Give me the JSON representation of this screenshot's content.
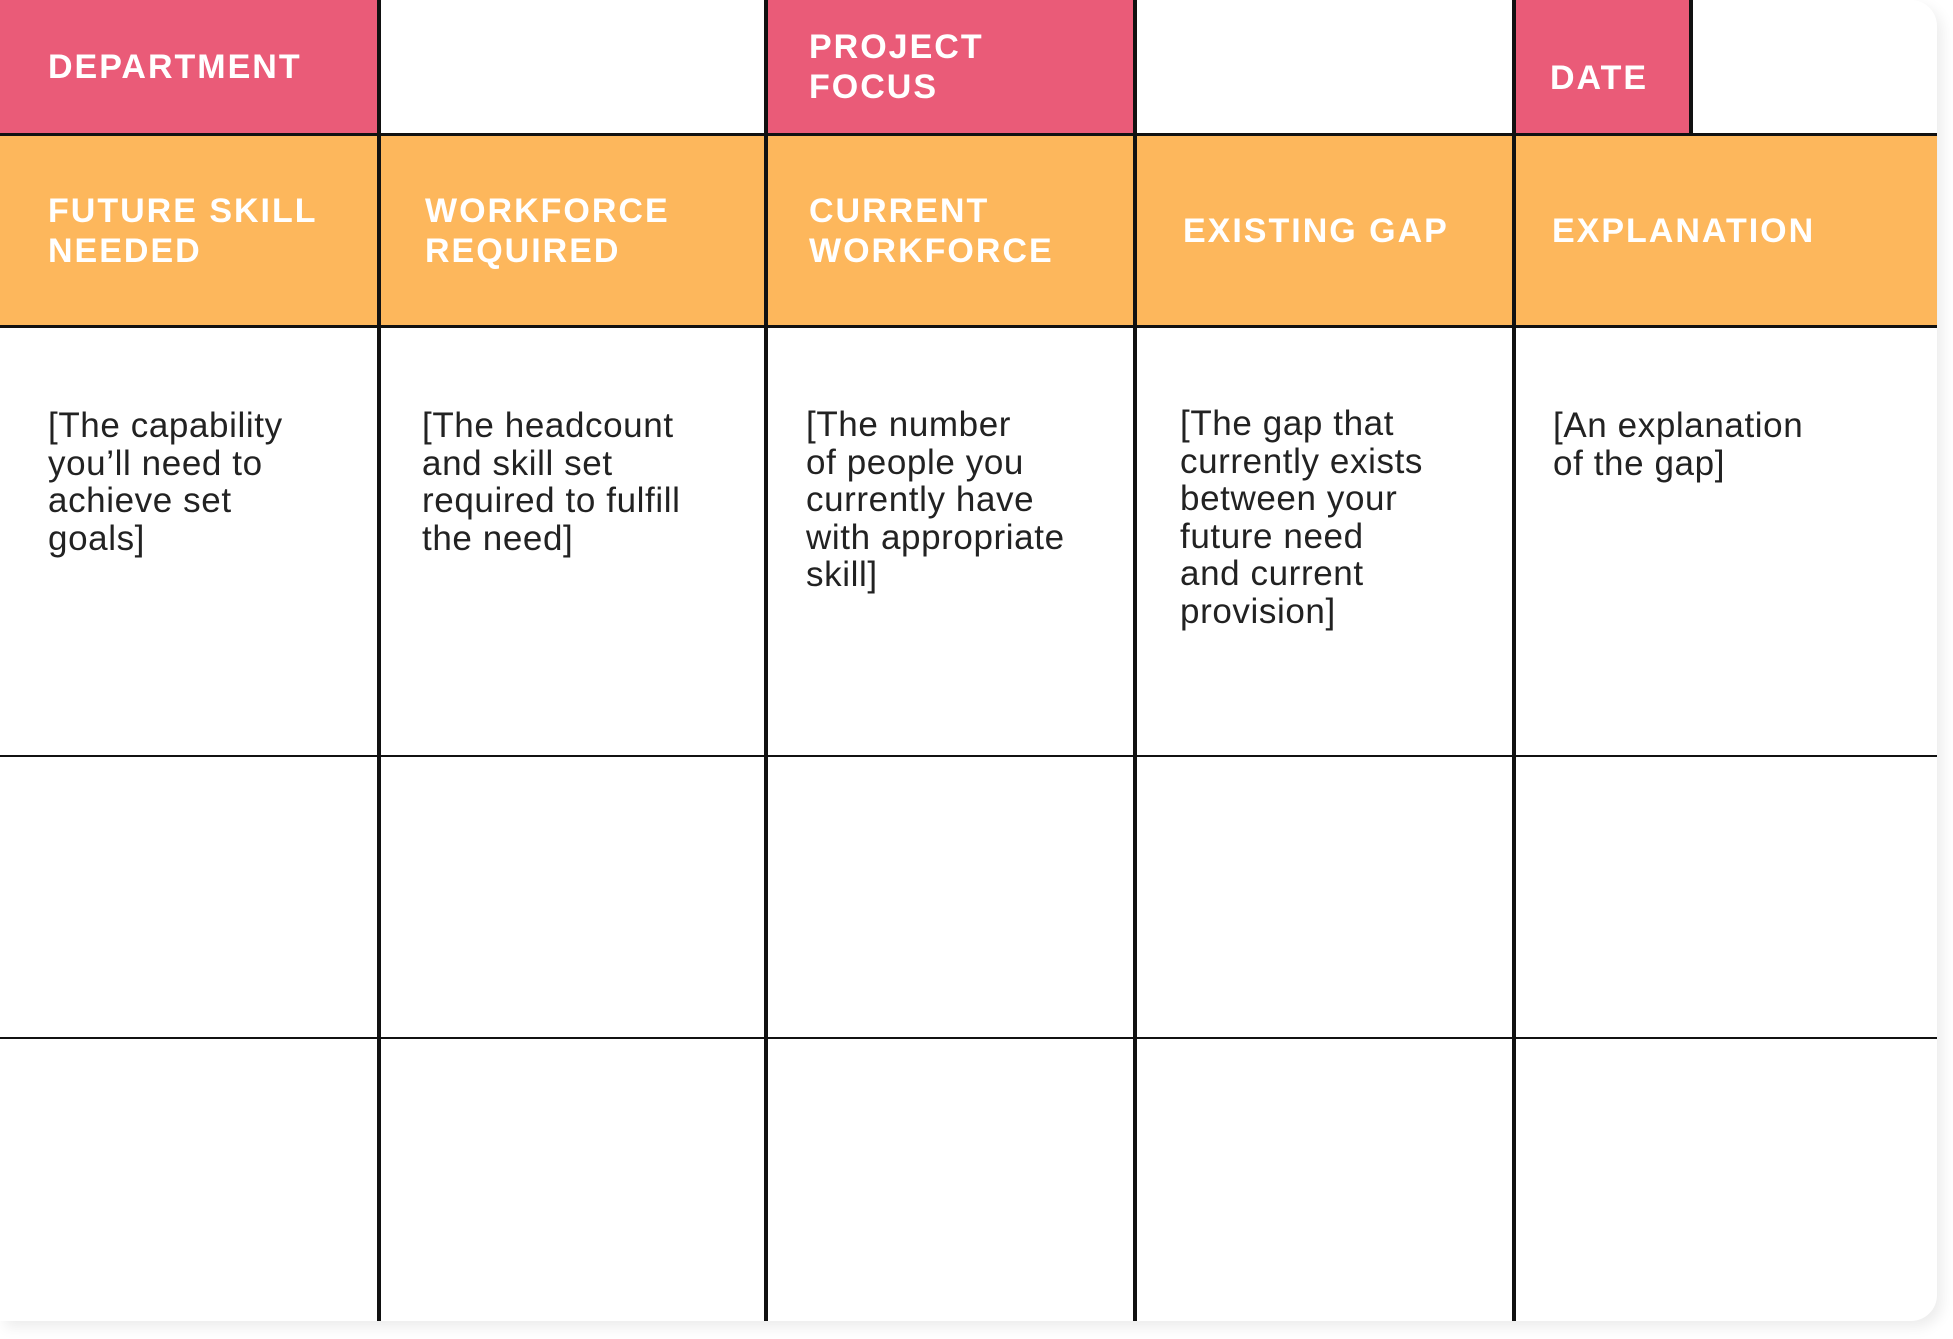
{
  "top_row": {
    "department_label": "DEPARTMENT",
    "department_value": "",
    "project_focus_label": "PROJECT\nFOCUS",
    "project_focus_value": "",
    "date_label": "DATE",
    "date_value": ""
  },
  "columns": [
    {
      "header": "FUTURE SKILL\nNEEDED",
      "description": "[The capability\nyou’ll need to\nachieve set\ngoals]"
    },
    {
      "header": "WORKFORCE\nREQUIRED",
      "description": "[The headcount\nand skill set\nrequired to fulfill\nthe need]"
    },
    {
      "header": "CURRENT\nWORKFORCE",
      "description": "[The number\nof people you\ncurrently have\nwith appropriate\nskill]"
    },
    {
      "header": "EXISTING GAP",
      "description": "[The gap that\ncurrently exists\nbetween your\nfuture need\nand current\nprovision]"
    },
    {
      "header": "EXPLANATION",
      "description": "[An explanation\nof the gap]"
    }
  ],
  "empty_rows": [
    [
      "",
      "",
      "",
      "",
      ""
    ],
    [
      "",
      "",
      "",
      "",
      ""
    ]
  ],
  "colors": {
    "pink_header": "#ea5b78",
    "orange_header": "#fdb75c",
    "grid_lines": "#111111",
    "text": "#222222"
  }
}
